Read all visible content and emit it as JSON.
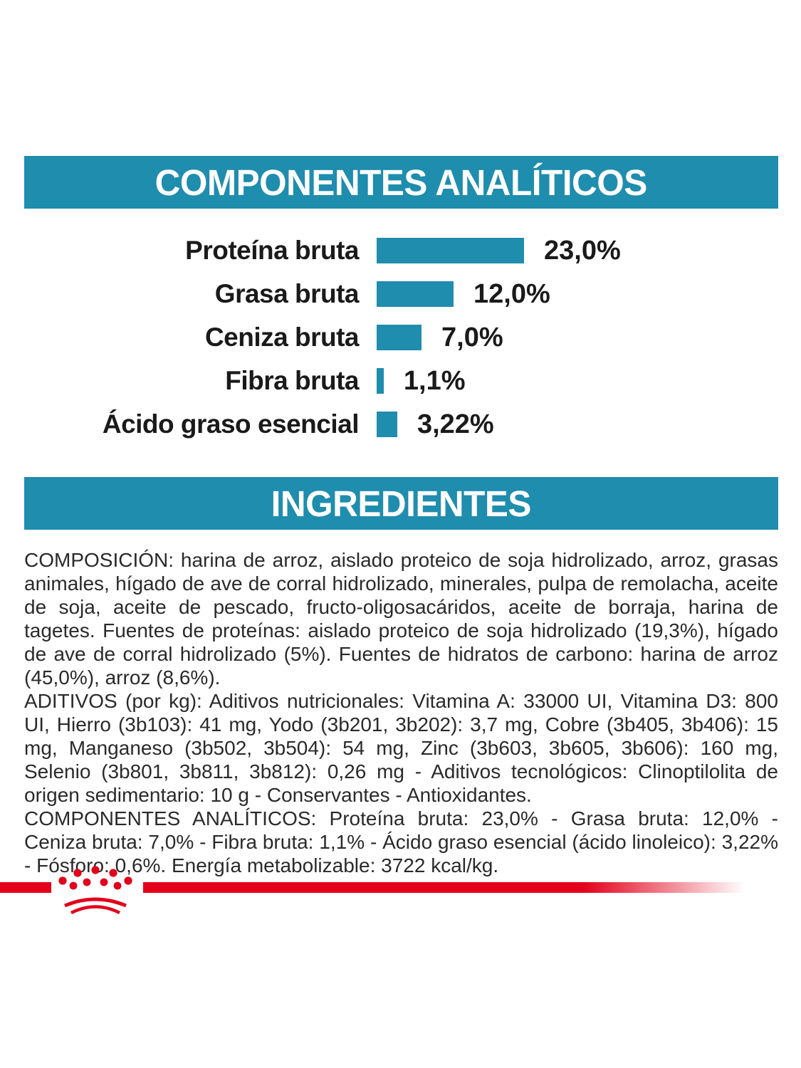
{
  "page": {
    "background_color": "#ffffff",
    "accent_teal": "#1F8DAD",
    "brand_red": "#E2001A",
    "text_color": "#2a2a2a"
  },
  "sections": {
    "analytical_header": "COMPONENTES ANALÍTICOS",
    "ingredients_header": "INGREDIENTES"
  },
  "chart_data": {
    "type": "bar",
    "orientation": "horizontal",
    "unit": "%",
    "bar_color": "#1F8DAD",
    "categories": [
      "Proteína bruta",
      "Grasa bruta",
      "Ceniza bruta",
      "Fibra bruta",
      "Ácido graso esencial"
    ],
    "values": [
      23.0,
      12.0,
      7.0,
      1.1,
      3.22
    ],
    "rows": [
      {
        "label": "Proteína bruta",
        "value": 23.0,
        "value_label": "23,0%"
      },
      {
        "label": "Grasa bruta",
        "value": 12.0,
        "value_label": "12,0%"
      },
      {
        "label": "Ceniza bruta",
        "value": 7.0,
        "value_label": "7,0%"
      },
      {
        "label": "Fibra bruta",
        "value": 1.1,
        "value_label": "1,1%"
      },
      {
        "label": "Ácido graso esencial",
        "value": 3.22,
        "value_label": "3,22%"
      }
    ]
  },
  "ingredients": {
    "composicion": "COMPOSICIÓN: harina de arroz, aislado proteico de soja hidrolizado, arroz, grasas animales, hígado de ave de corral hidrolizado, minerales, pulpa de remolacha, aceite de soja, aceite de pescado, fructo-oligosacáridos, aceite de borraja, harina de tagetes. Fuentes de proteínas: aislado proteico de soja hidrolizado (19,3%), hígado de ave de corral hidrolizado (5%). Fuentes de hidratos de carbono: harina de arroz (45,0%), arroz (8,6%).",
    "aditivos": "ADITIVOS (por kg): Aditivos nutricionales: Vitamina A: 33000 UI, Vitamina D3: 800 UI, Hierro (3b103): 41 mg, Yodo (3b201, 3b202): 3,7 mg, Cobre (3b405, 3b406): 15 mg, Manganeso (3b502, 3b504): 54 mg, Zinc (3b603, 3b605, 3b606): 160 mg, Selenio (3b801, 3b811, 3b812): 0,26 mg - Aditivos tecnológicos: Clinoptilolita de origen sedimentario: 10 g - Conservantes - Antioxidantes.",
    "componentes_analiticos": "COMPONENTES ANALÍTICOS: Proteína bruta: 23,0% - Grasa bruta: 12,0% - Ceniza bruta: 7,0% - Fibra bruta: 1,1% - Ácido graso esencial (ácido linoleico): 3,22% - Fósforo: 0,6%. Energía metabolizable: 3722 kcal/kg."
  },
  "footer": {
    "logo": "royal-canin-crown"
  }
}
